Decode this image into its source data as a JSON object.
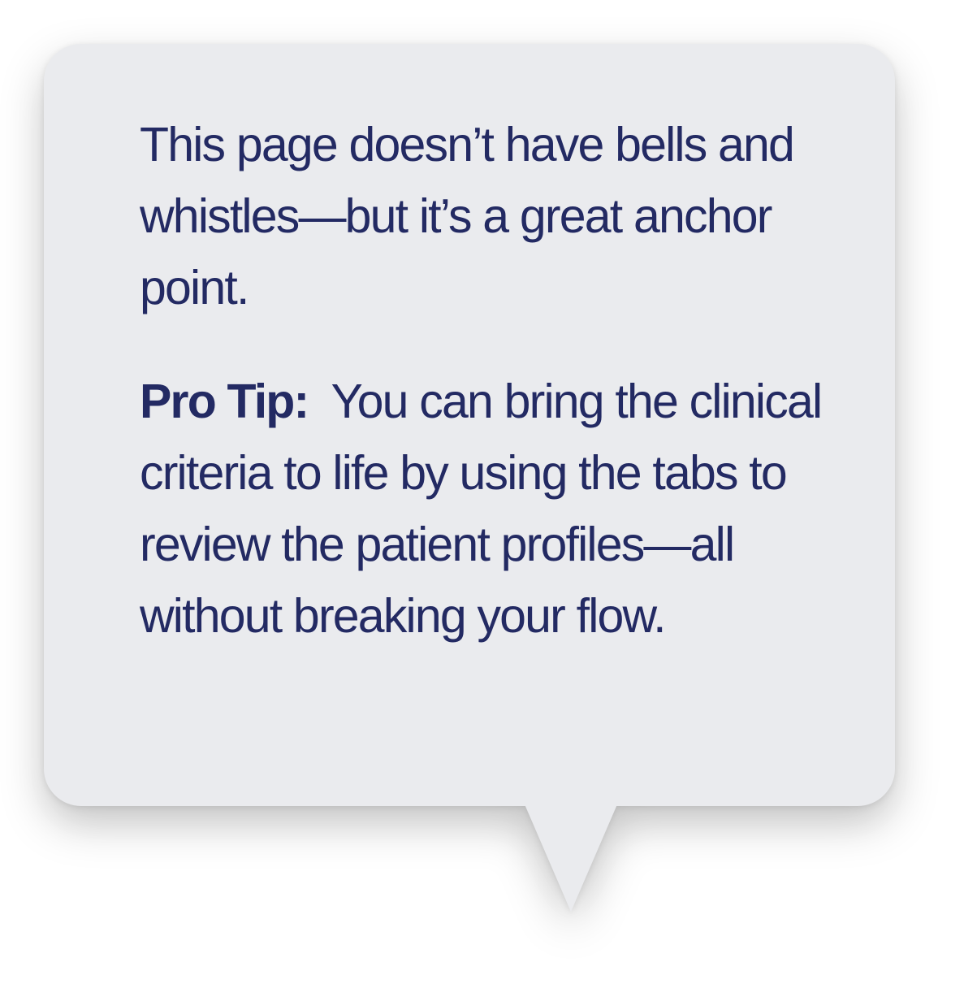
{
  "callout": {
    "intro": "This page doesn’t have bells and whistles—but it’s a great anchor point.",
    "tip_label": "Pro Tip:",
    "tip_text": "You can bring the clinical criteria to life by using the tabs to review the patient profiles—all without breaking your flow."
  },
  "colors": {
    "bubble_background": "#eaebee",
    "text": "#232a63"
  }
}
